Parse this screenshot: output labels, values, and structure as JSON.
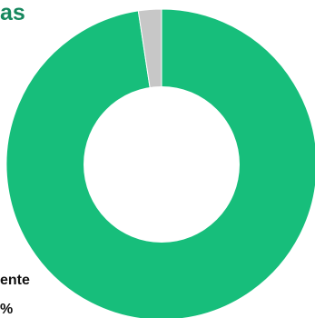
{
  "title_fragment": "as",
  "colors": {
    "primary_slice": "#17be7b",
    "secondary_slice": "#c7c7c7",
    "title": "#16875e",
    "hole": "#ffffff"
  },
  "chart_data": {
    "type": "pie",
    "variant": "donut",
    "title": "",
    "slices": [
      {
        "color": "#17be7b",
        "value": 97.6
      },
      {
        "color": "#c7c7c7",
        "value": 2.4
      }
    ],
    "visible_labels": [
      "ente",
      "%"
    ],
    "legend": "none"
  }
}
